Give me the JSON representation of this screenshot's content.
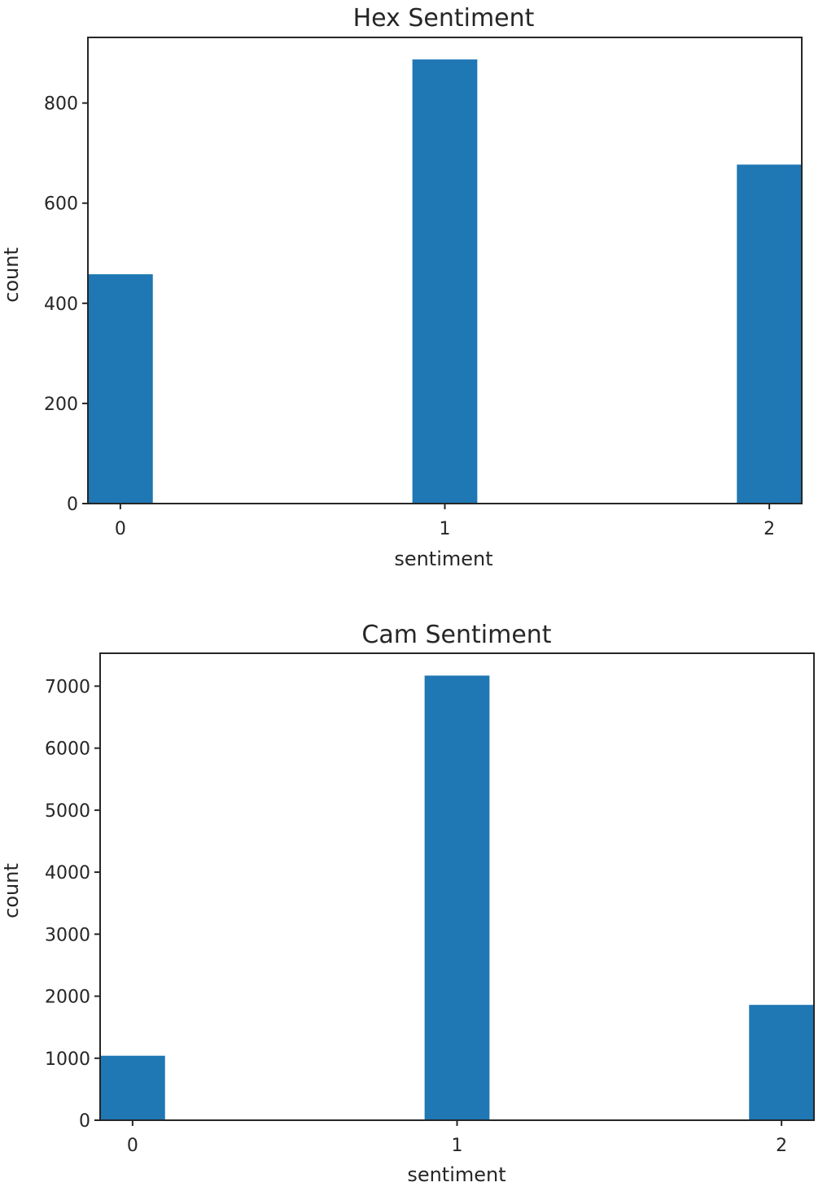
{
  "chart_data": [
    {
      "type": "bar",
      "title": "Hex Sentiment",
      "xlabel": "sentiment",
      "ylabel": "count",
      "x": [
        0,
        1,
        2
      ],
      "values": [
        458,
        887,
        677
      ],
      "bar_width": 0.2,
      "xlim": [
        -0.1,
        2.1
      ],
      "ylim": [
        0,
        931
      ],
      "xticks": [
        0,
        1,
        2
      ],
      "yticks": [
        0,
        200,
        400,
        600,
        800
      ],
      "bar_color": "#1f77b4",
      "grid": false
    },
    {
      "type": "bar",
      "title": "Cam Sentiment",
      "xlabel": "sentiment",
      "ylabel": "count",
      "x": [
        0,
        1,
        2
      ],
      "values": [
        1040,
        7170,
        1860
      ],
      "bar_width": 0.2,
      "xlim": [
        -0.1,
        2.1
      ],
      "ylim": [
        0,
        7530
      ],
      "xticks": [
        0,
        1,
        2
      ],
      "yticks": [
        0,
        1000,
        2000,
        3000,
        4000,
        5000,
        6000,
        7000
      ],
      "bar_color": "#1f77b4",
      "grid": false
    }
  ]
}
